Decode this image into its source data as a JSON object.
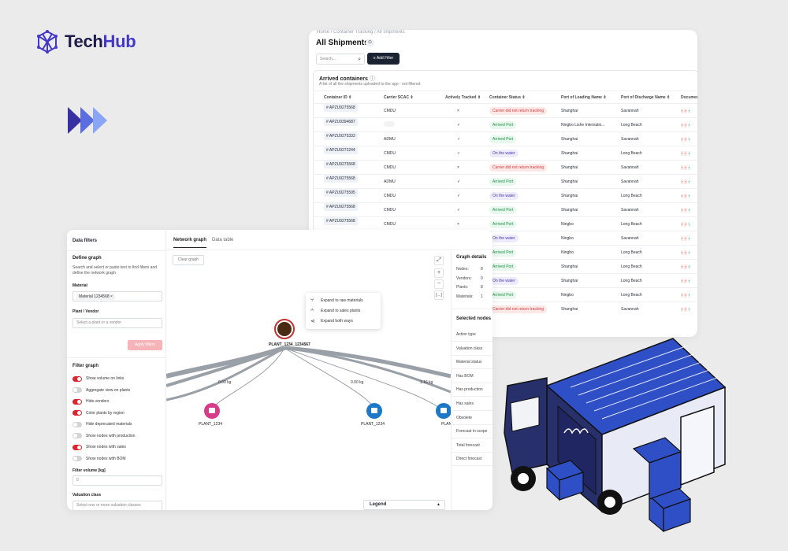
{
  "brand": {
    "logo_text_1": "Tech",
    "logo_text_2": "Hub",
    "accent": "#4338ca"
  },
  "shipments": {
    "breadcrumb": "Home  /  Container Tracking  /  All shipments",
    "title": "All Shipments",
    "search_placeholder": "Search...",
    "add_filter": "Add Filter",
    "section_title": "Arrived containers",
    "section_subtitle": "A list of all the shipments uploaded to the app - not filtered",
    "columns": [
      "Container ID",
      "Carrier SCAC",
      "Actively Tracked",
      "Container Status",
      "Port of Loading Name",
      "Port of Discharge Name",
      "Documents"
    ],
    "rows": [
      {
        "id": "# APZU9275568",
        "carrier": "CMDU",
        "tracked": "×",
        "status": "Carrier did not return tracking",
        "tone": "red",
        "pol": "Shanghai",
        "pod": "Savannah"
      },
      {
        "id": "# APZU9394687",
        "carrier": "",
        "tracked": "✓",
        "status": "Arrived Port",
        "tone": "green",
        "pol": "Ningbo Lishe Internatio...",
        "pod": "Long Beach"
      },
      {
        "id": "# APZU9275333",
        "carrier": "ADMU",
        "tracked": "✓",
        "status": "Arrived Port",
        "tone": "green",
        "pol": "Shanghai",
        "pod": "Savannah"
      },
      {
        "id": "# APZU9272244",
        "carrier": "CMDU",
        "tracked": "✓",
        "status": "On the water",
        "tone": "purple",
        "pol": "Shanghai",
        "pod": "Long Beach"
      },
      {
        "id": "# APZU9275568",
        "carrier": "CMDU",
        "tracked": "×",
        "status": "Carrier did not return tracking",
        "tone": "red",
        "pol": "Shanghai",
        "pod": "Savannah"
      },
      {
        "id": "# APZU9275568",
        "carrier": "ADMU",
        "tracked": "✓",
        "status": "Arrived Port",
        "tone": "green",
        "pol": "Shanghai",
        "pod": "Savannah"
      },
      {
        "id": "# APZU9275595",
        "carrier": "CMDU",
        "tracked": "✓",
        "status": "On the water",
        "tone": "purple",
        "pol": "Shanghai",
        "pod": "Long Beach"
      },
      {
        "id": "# APZU9275568",
        "carrier": "CMDU",
        "tracked": "✓",
        "status": "Arrived Port",
        "tone": "green",
        "pol": "Shanghai",
        "pod": "Savannah"
      },
      {
        "id": "# APZU9275568",
        "carrier": "CMDU",
        "tracked": "×",
        "status": "Arrived Port",
        "tone": "green",
        "pol": "Ningbo",
        "pod": "Long Beach"
      },
      {
        "id": "",
        "carrier": "",
        "tracked": "",
        "status": "On the water",
        "tone": "purple",
        "pol": "Ningbo",
        "pod": "Savannah"
      },
      {
        "id": "",
        "carrier": "",
        "tracked": "",
        "status": "Arrived Port",
        "tone": "green",
        "pol": "Ningbo",
        "pod": "Long Beach"
      },
      {
        "id": "",
        "carrier": "",
        "tracked": "",
        "status": "Arrived Port",
        "tone": "green",
        "pol": "Shanghai",
        "pod": "Long Beach"
      },
      {
        "id": "",
        "carrier": "",
        "tracked": "",
        "status": "On the water",
        "tone": "purple",
        "pol": "Shanghai",
        "pod": "Long Beach"
      },
      {
        "id": "",
        "carrier": "",
        "tracked": "",
        "status": "Arrived Port",
        "tone": "green",
        "pol": "Ningbo",
        "pod": "Long Beach"
      },
      {
        "id": "",
        "carrier": "",
        "tracked": "",
        "status": "Carrier did not return tracking",
        "tone": "red",
        "pol": "Shanghai",
        "pod": "Savannah"
      }
    ]
  },
  "network": {
    "filters_title": "Data filters",
    "define_title": "Define graph",
    "define_desc": "Search and select or paste text to find filters and define the network graph",
    "material_label": "Material",
    "material_chip": "Material 1234568",
    "plant_label": "Plant / Vendor",
    "plant_placeholder": "Select a plant or a vendor",
    "apply": "Apply filters",
    "filter_graph_title": "Filter graph",
    "toggles": [
      {
        "label": "Show volume on links",
        "on": true
      },
      {
        "label": "Aggregate view on plants",
        "on": false
      },
      {
        "label": "Hide vendors",
        "on": true
      },
      {
        "label": "Color plants by region",
        "on": true
      },
      {
        "label": "Hide deprecated materials",
        "on": false
      },
      {
        "label": "Show nodes with production",
        "on": false
      },
      {
        "label": "Show nodes with sales",
        "on": true
      },
      {
        "label": "Show nodes with BOM",
        "on": false
      }
    ],
    "volume_label": "Filter volume [kg]",
    "volume_value": "0",
    "valuation_label": "Valuation class",
    "valuation_placeholder": "Select one or more valuation classes",
    "tab_graph": "Network graph",
    "tab_table": "Data table",
    "clear": "Clear graph",
    "menu": [
      "Expand to raw materials",
      "Expand to sales plants",
      "Expand both ways"
    ],
    "root_label": "PLANT_1234_1234567",
    "nodes": [
      "PLANT_1234",
      "PLANT_1234",
      "PLAN"
    ],
    "edges": [
      "0.00 kg",
      "0.00 kg",
      "1.16 kg"
    ],
    "details_title": "Graph details",
    "details": [
      {
        "k": "Nodes:",
        "v": "8"
      },
      {
        "k": "Vendors:",
        "v": "0"
      },
      {
        "k": "Plants:",
        "v": "8"
      },
      {
        "k": "Materials:",
        "v": "1"
      }
    ],
    "selected_title": "Selected nodes",
    "selected_fields": [
      "Action type",
      "Valuation class",
      "Material status",
      "Has BOM",
      "Has production",
      "Has sales",
      "Obsolete",
      "Forecast in scope",
      "Total forecast",
      "Direct forecast"
    ],
    "legend": "Legend"
  }
}
